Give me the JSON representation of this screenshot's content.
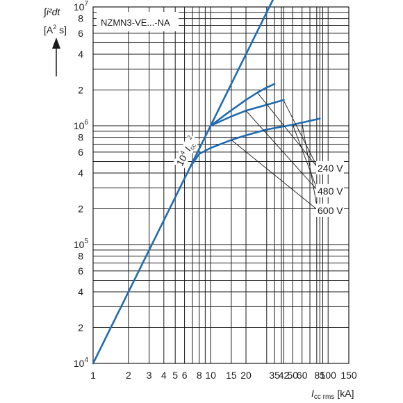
{
  "chart_data": {
    "type": "line",
    "title": "NZMN3-VE...-NA",
    "y_axis": {
      "label_top": "∫i²dt",
      "label_unit_parts": [
        "[A",
        "2",
        " s]"
      ],
      "scale": "log",
      "range": [
        10000,
        10000000
      ],
      "major_tick_labels": [
        {
          "value": 10000,
          "mantissa": "10",
          "exp": "4"
        },
        {
          "value": 100000,
          "mantissa": "10",
          "exp": "5"
        },
        {
          "value": 1000000,
          "mantissa": "10",
          "exp": "6"
        },
        {
          "value": 10000000,
          "mantissa": "10",
          "exp": "7"
        }
      ],
      "minor_tick_labels": [
        {
          "value": 20000,
          "text": "2"
        },
        {
          "value": 40000,
          "text": "4"
        },
        {
          "value": 60000,
          "text": "6"
        },
        {
          "value": 80000,
          "text": "8"
        },
        {
          "value": 200000,
          "text": "2"
        },
        {
          "value": 400000,
          "text": "4"
        },
        {
          "value": 600000,
          "text": "6"
        },
        {
          "value": 800000,
          "text": "8"
        },
        {
          "value": 2000000,
          "text": "2"
        },
        {
          "value": 4000000,
          "text": "4"
        },
        {
          "value": 6000000,
          "text": "6"
        },
        {
          "value": 8000000,
          "text": "8"
        }
      ]
    },
    "x_axis": {
      "label_main": "I",
      "label_sub": "cc rms",
      "label_unit": "[kA]",
      "scale": "log",
      "range": [
        1,
        150
      ],
      "tick_labels": [
        {
          "value": 1,
          "text": "1"
        },
        {
          "value": 2,
          "text": "2"
        },
        {
          "value": 3,
          "text": "3"
        },
        {
          "value": 4,
          "text": "4"
        },
        {
          "value": 5,
          "text": "5"
        },
        {
          "value": 6,
          "text": "6"
        },
        {
          "value": 8,
          "text": "8"
        },
        {
          "value": 10,
          "text": "10"
        },
        {
          "value": 15,
          "text": "15"
        },
        {
          "value": 20,
          "text": "20"
        },
        {
          "value": 35,
          "text": "35"
        },
        {
          "value": 42,
          "text": "42"
        },
        {
          "value": 50,
          "text": "50"
        },
        {
          "value": 60,
          "text": "60"
        },
        {
          "value": 85,
          "text": "85"
        },
        {
          "value": 100,
          "text": "100"
        },
        {
          "value": 150,
          "text": "150"
        }
      ],
      "gridlines": [
        1,
        2,
        3,
        4,
        5,
        6,
        7,
        8,
        9,
        10,
        15,
        20,
        30,
        35,
        40,
        42,
        50,
        60,
        70,
        80,
        85,
        90,
        100,
        150
      ]
    },
    "grid": true,
    "reference_line": {
      "label_parts": [
        "10",
        "4",
        " I",
        "cc",
        " 2"
      ],
      "points": [
        [
          1,
          10000
        ],
        [
          35,
          12250000
        ]
      ]
    },
    "series": [
      {
        "name": "240 V",
        "color": "#1f6bb0",
        "points": [
          [
            10,
            1000000
          ],
          [
            15,
            1350000
          ],
          [
            20,
            1650000
          ],
          [
            25,
            1900000
          ],
          [
            30,
            2100000
          ],
          [
            35,
            2250000
          ]
        ]
      },
      {
        "name": "480 V",
        "color": "#1f6bb0",
        "points": [
          [
            10,
            1000000
          ],
          [
            15,
            1200000
          ],
          [
            20,
            1340000
          ],
          [
            30,
            1500000
          ],
          [
            42,
            1650000
          ]
        ]
      },
      {
        "name": "600 V",
        "color": "#1f6bb0",
        "points": [
          [
            6.8,
            460000
          ],
          [
            8,
            580000
          ],
          [
            10,
            650000
          ],
          [
            15,
            760000
          ],
          [
            20,
            830000
          ],
          [
            30,
            930000
          ],
          [
            50,
            1020000
          ],
          [
            85,
            1150000
          ]
        ]
      }
    ],
    "series_label_order": [
      "240 V",
      "480 V",
      "600 V"
    ]
  }
}
